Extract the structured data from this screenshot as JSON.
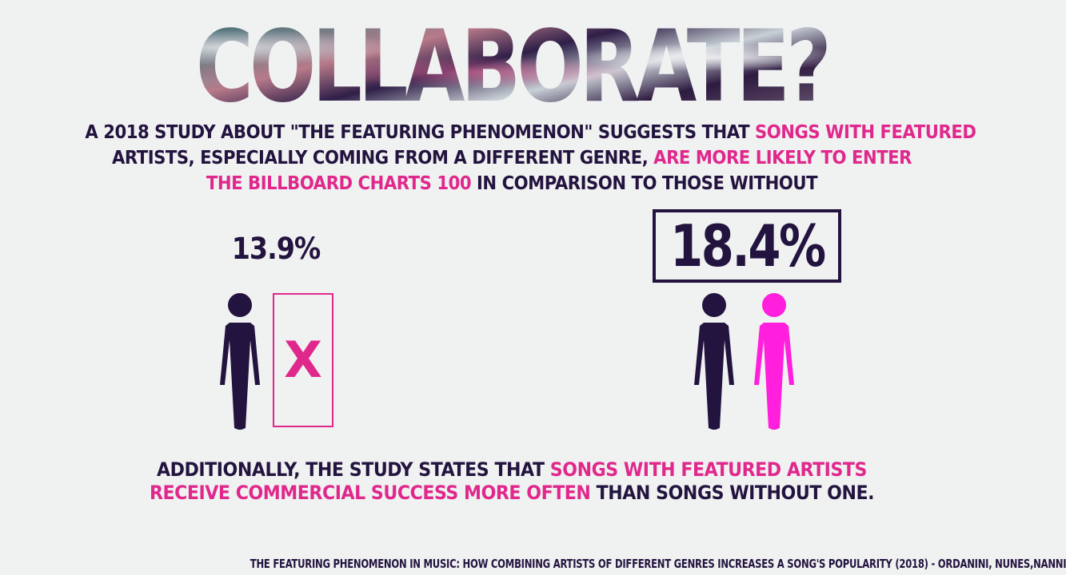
{
  "headline": {
    "text": "COLLABORATE?"
  },
  "intro": {
    "line1_dark": "A 2018 STUDY ABOUT \"THE FEATURING PHENOMENON\" SUGGESTS THAT ",
    "line1_pink": "SONGS WITH FEATURED",
    "line2_dark": "ARTISTS, ESPECIALLY COMING FROM A DIFFERENT GENRE, ",
    "line2_pink": "ARE MORE LIKELY TO ENTER",
    "line3_pink": "THE BILLBOARD CHARTS 100",
    "line3_dark": " IN  COMPARISON TO THOSE WITHOUT"
  },
  "stats": {
    "without_featured": "13.9%",
    "with_featured": "18.4%",
    "missing_marker": "X"
  },
  "outro": {
    "line1_dark": "ADDITIONALLY, THE STUDY STATES THAT ",
    "line1_pink": "SONGS WITH FEATURED ARTISTS",
    "line2_pink": "RECEIVE COMMERCIAL SUCCESS MORE OFTEN",
    "line2_dark": " THAN SONGS WITHOUT ONE."
  },
  "citation": {
    "text": "THE FEATURING PHENOMENON IN MUSIC: HOW COMBINING ARTISTS OF DIFFERENT GENRES INCREASES A SONG'S POPULARITY (2018) - ORDANINI, NUNES,NANNI"
  },
  "colors": {
    "dark": "#23143f",
    "pink": "#e0288c",
    "magenta": "#ff1fdc",
    "background": "#f0f1f1"
  },
  "icons": {
    "headline_texture": "cloudy-sky-texture",
    "figure": "person-icon"
  }
}
